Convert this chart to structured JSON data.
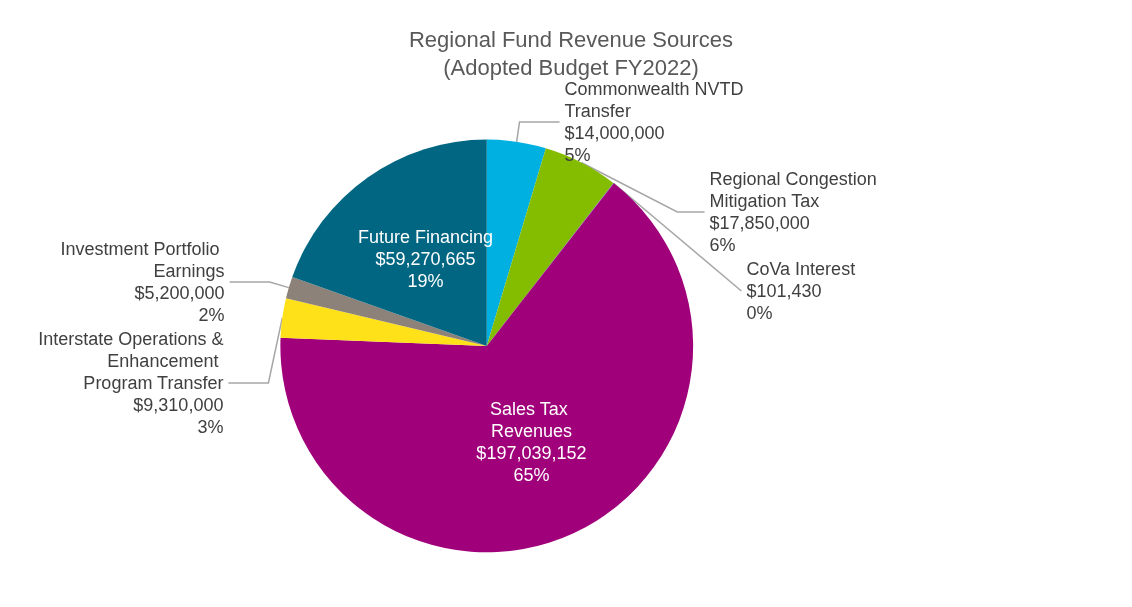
{
  "chart_data": {
    "type": "pie",
    "title": "Regional Fund Revenue Sources\n(Adopted Budget FY2022)",
    "categories": [
      "Commonwealth NVTD Transfer",
      "Regional Congestion Mitigation Tax",
      "CoVa Interest",
      "Sales Tax Revenues",
      "Interstate Operations & Enhancement Program Transfer",
      "Investment Portfolio Earnings",
      "Future Financing"
    ],
    "values": [
      14000000,
      17850000,
      101430,
      197039152,
      9310000,
      5200000,
      59270665
    ],
    "colors": [
      "#00b0e0",
      "#84bd00",
      "#4f81bd",
      "#a0007a",
      "#ffe11a",
      "#8c8279",
      "#006682"
    ],
    "value_labels": [
      "$14,000,000\n5%",
      "$17,850,000\n6%",
      "$101,430\n0%",
      "$197,039,152\n65%",
      "$9,310,000\n3%",
      "$5,200,000\n2%",
      "$59,270,665\n19%"
    ],
    "legend": false
  }
}
